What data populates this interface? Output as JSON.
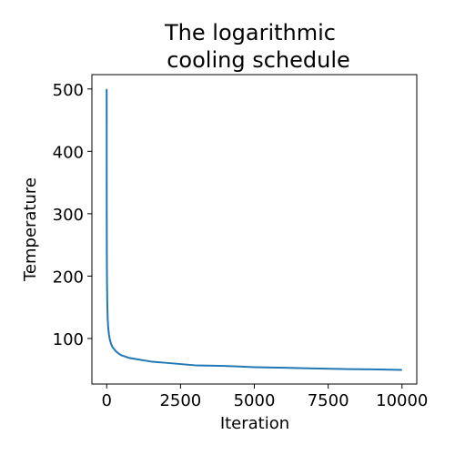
{
  "chart_data": {
    "type": "line",
    "title": [
      "The logarithmic",
      "cooling schedule"
    ],
    "xlabel": "Iteration",
    "ylabel": "Temperature",
    "xlim": [
      -500,
      10500
    ],
    "ylim": [
      27,
      523
    ],
    "xticks": [
      0,
      2500,
      5000,
      7500,
      10000
    ],
    "yticks": [
      100,
      200,
      300,
      400,
      500
    ],
    "grid": false,
    "series": [
      {
        "color": "#1f77b4",
        "x": [
          0,
          1,
          2,
          3,
          5,
          8,
          12,
          20,
          35,
          50,
          75,
          100,
          150,
          200,
          300,
          400,
          500,
          750,
          1000,
          1500,
          2000,
          2500,
          3000,
          4000,
          5000,
          6000,
          7000,
          8000,
          9000,
          10000
        ],
        "y": [
          500,
          386,
          322,
          288,
          246,
          212,
          188,
          158,
          131,
          119,
          107,
          100,
          91,
          86,
          80,
          76,
          73,
          69,
          67,
          63,
          61,
          59,
          57,
          56,
          54,
          53,
          52,
          51,
          50.5,
          49.6
        ]
      }
    ]
  }
}
